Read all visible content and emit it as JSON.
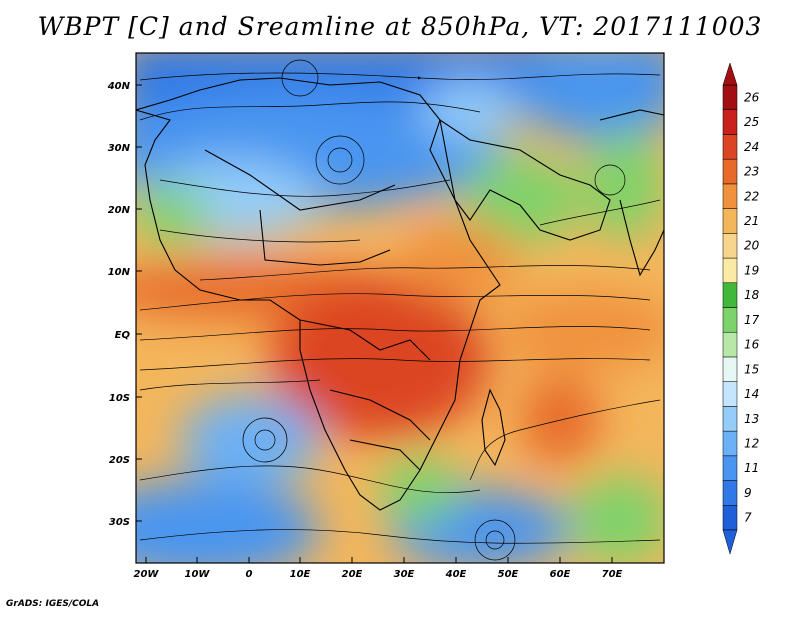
{
  "title": "WBPT [C] and Sreamline at 850hPa, VT: 2017111003",
  "credit": "GrADS: IGES/COLA",
  "lat_labels": [
    "40N",
    "30N",
    "20N",
    "10N",
    "EQ",
    "10S",
    "20S",
    "30S"
  ],
  "lon_labels": [
    "20W",
    "10W",
    "0",
    "10E",
    "20E",
    "30E",
    "40E",
    "50E",
    "60E",
    "70E"
  ],
  "colorbar": {
    "labels": [
      "7",
      "9",
      "11",
      "12",
      "13",
      "14",
      "15",
      "16",
      "17",
      "18",
      "19",
      "20",
      "21",
      "22",
      "23",
      "24",
      "25",
      "26"
    ],
    "colors": [
      "#1f5fd8",
      "#2f78e6",
      "#4a95f0",
      "#6cb0f5",
      "#95cdf9",
      "#c4e6fc",
      "#e6f7f4",
      "#b7e8a8",
      "#7dd36b",
      "#42b83a",
      "#fbeaa6",
      "#f8d58c",
      "#f4b65b",
      "#f0923c",
      "#e76a2a",
      "#dc4523",
      "#c9211b",
      "#a10f12"
    ]
  },
  "map": {
    "lon_range": [
      -20,
      80
    ],
    "lat_range": [
      -36,
      45
    ],
    "variable": "Wet-bulb potential temperature",
    "level": "850hPa",
    "valid_time": "2017111003"
  }
}
